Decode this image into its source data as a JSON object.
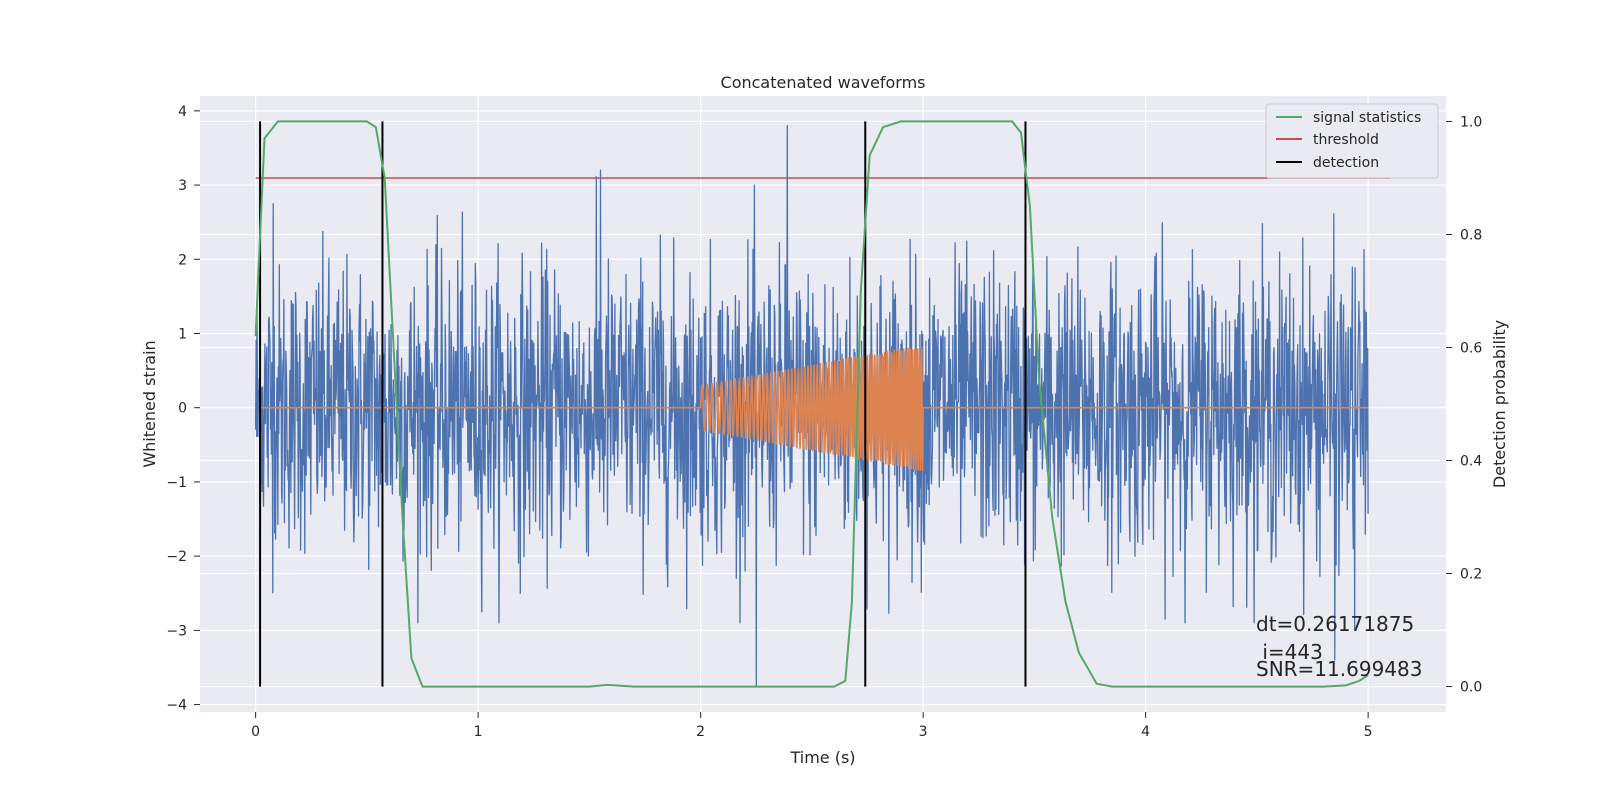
{
  "chart_data": {
    "type": "line",
    "title": "Concatenated waveforms",
    "xlabel": "Time (s)",
    "ylabel": "Whitened strain",
    "y2label": "Detection probability",
    "xlim": [
      -0.25,
      5.35
    ],
    "ylim": [
      -4.1,
      4.2
    ],
    "y2lim": [
      -0.045,
      1.045
    ],
    "xticks": [
      0,
      1,
      2,
      3,
      4,
      5
    ],
    "yticks": [
      -4,
      -3,
      -2,
      -1,
      0,
      1,
      2,
      3,
      4
    ],
    "y2ticks": [
      0.0,
      0.2,
      0.4,
      0.6,
      0.8,
      1.0
    ],
    "xtick_labels": [
      "0",
      "1",
      "2",
      "3",
      "4",
      "5"
    ],
    "ytick_labels": [
      "−4",
      "−3",
      "−2",
      "−1",
      "0",
      "1",
      "2",
      "3",
      "4"
    ],
    "y2tick_labels": [
      "0.0",
      "0.2",
      "0.4",
      "0.6",
      "0.8",
      "1.0"
    ],
    "grid": true,
    "legend_position": "top-right",
    "strain_noise": {
      "color": "#4c72b0",
      "x_range": [
        0,
        5
      ],
      "typical_range": [
        -2.4,
        2.9
      ],
      "max": 3.8,
      "min": -3.75
    },
    "injected_waveform": {
      "color": "#dd8452",
      "x_range": [
        2.0,
        3.0
      ],
      "amplitude_start": 0.3,
      "amplitude_end": 0.85
    },
    "series": [
      {
        "name": "signal statistics",
        "color": "#55a868",
        "axis": "right",
        "points": [
          [
            0,
            0.62
          ],
          [
            0.02,
            0.8
          ],
          [
            0.04,
            0.97
          ],
          [
            0.1,
            1.0
          ],
          [
            0.5,
            1.0
          ],
          [
            0.54,
            0.99
          ],
          [
            0.58,
            0.9
          ],
          [
            0.62,
            0.6
          ],
          [
            0.66,
            0.3
          ],
          [
            0.7,
            0.05
          ],
          [
            0.75,
            0.0
          ],
          [
            1.5,
            0.0
          ],
          [
            1.58,
            0.003
          ],
          [
            1.7,
            0.0
          ],
          [
            2.6,
            0.0
          ],
          [
            2.65,
            0.01
          ],
          [
            2.68,
            0.15
          ],
          [
            2.72,
            0.7
          ],
          [
            2.76,
            0.94
          ],
          [
            2.82,
            0.99
          ],
          [
            2.9,
            1.0
          ],
          [
            3.4,
            1.0
          ],
          [
            3.44,
            0.98
          ],
          [
            3.48,
            0.85
          ],
          [
            3.52,
            0.55
          ],
          [
            3.58,
            0.3
          ],
          [
            3.64,
            0.15
          ],
          [
            3.7,
            0.06
          ],
          [
            3.78,
            0.005
          ],
          [
            3.85,
            0.0
          ],
          [
            4.8,
            0.0
          ],
          [
            4.9,
            0.002
          ],
          [
            4.96,
            0.01
          ],
          [
            5.0,
            0.02
          ]
        ]
      },
      {
        "name": "threshold",
        "color": "#c44e52",
        "axis": "right",
        "value": 0.9,
        "x_range": [
          0,
          5.1
        ]
      },
      {
        "name": "detection",
        "color": "#000000",
        "axis": "right",
        "x": [
          0.02,
          0.57,
          2.74,
          3.46
        ]
      }
    ],
    "annotations": [
      "dt=0.26171875",
      " i=443",
      "SNR=11.699483"
    ]
  }
}
